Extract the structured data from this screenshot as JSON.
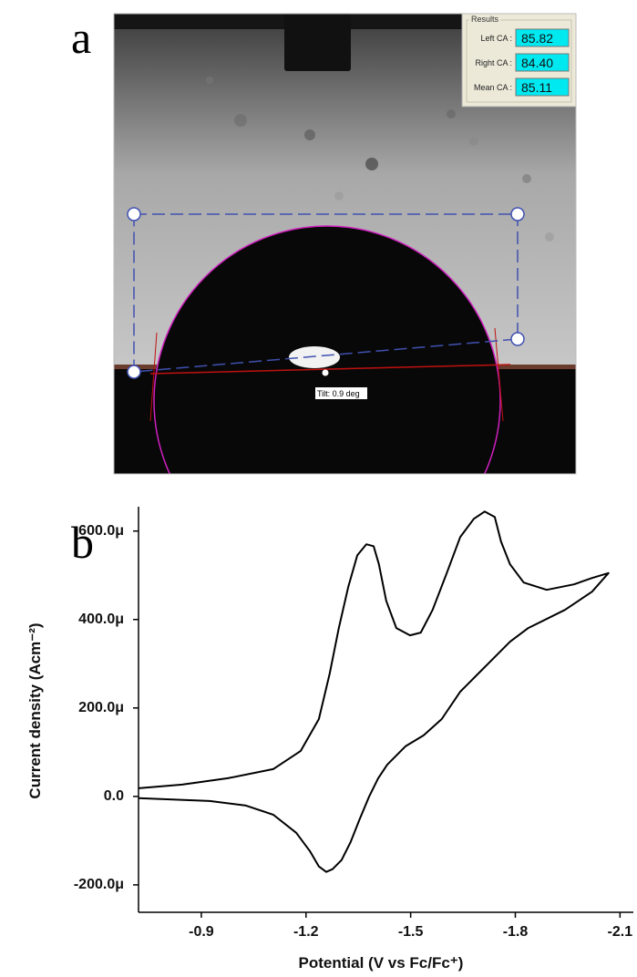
{
  "panel_a": {
    "label": "a",
    "results": {
      "title": "Results",
      "rows": [
        {
          "label": "Left CA :",
          "value": "85.82"
        },
        {
          "label": "Right CA :",
          "value": "84.40"
        },
        {
          "label": "Mean CA :",
          "value": "85.11"
        }
      ]
    },
    "tilt": "Tilt: 0.9 deg"
  },
  "chart_data": {
    "type": "line",
    "panel_label": "b",
    "xlabel": "Potential (V vs Fc/Fc⁺)",
    "ylabel": "Current density (Acm⁻²)",
    "xlim": [
      -0.72,
      -2.12
    ],
    "xticks": [
      -0.9,
      -1.2,
      -1.5,
      -1.8,
      -2.1
    ],
    "ylim": [
      -0.000262,
      0.000655
    ],
    "yticks": [
      {
        "value": -0.0002,
        "label": "-200.0μ"
      },
      {
        "value": 0,
        "label": "0.0"
      },
      {
        "value": 0.0002,
        "label": "200.0μ"
      },
      {
        "value": 0.0004,
        "label": "400.0μ"
      },
      {
        "value": 0.0006,
        "label": "600.0μ"
      }
    ],
    "color": "#000000",
    "x": [
      -0.72,
      -0.845,
      -0.976,
      -1.106,
      -1.185,
      -1.237,
      -1.268,
      -1.294,
      -1.321,
      -1.347,
      -1.373,
      -1.394,
      -1.409,
      -1.43,
      -1.459,
      -1.498,
      -1.529,
      -1.563,
      -1.603,
      -1.642,
      -1.681,
      -1.712,
      -1.741,
      -1.759,
      -1.785,
      -1.824,
      -1.89,
      -1.968,
      -2.02,
      -2.067,
      -2.02,
      -1.942,
      -1.837,
      -1.785,
      -1.733,
      -1.694,
      -1.642,
      -1.589,
      -1.537,
      -1.485,
      -1.433,
      -1.407,
      -1.381,
      -1.354,
      -1.328,
      -1.302,
      -1.276,
      -1.258,
      -1.237,
      -1.211,
      -1.172,
      -1.106,
      -1.028,
      -0.924,
      -0.793,
      -0.72
    ],
    "y": [
      1.85e-05,
      2.67e-05,
      4.12e-05,
      6.17e-05,
      0.0001029,
      0.0001749,
      0.0002778,
      0.0003807,
      0.0004733,
      0.0005453,
      0.00057,
      0.0005658,
      0.0005247,
      0.0004424,
      0.0003807,
      0.0003642,
      0.0003704,
      0.0004218,
      0.0005041,
      0.0005864,
      0.0006276,
      0.000644,
      0.0006317,
      0.0005761,
      0.0005247,
      0.0004835,
      0.0004671,
      0.0004794,
      0.0004938,
      0.000505,
      0.000463,
      0.0004218,
      0.0003807,
      0.0003498,
      0.0003086,
      0.0002778,
      0.0002366,
      0.0001749,
      0.0001379,
      0.0001132,
      7.2e-05,
      4.12e-05,
      0,
      -5.14e-05,
      -0.0001029,
      -0.000144,
      -0.0001646,
      -0.0001708,
      -0.0001584,
      -0.0001235,
      -8.23e-05,
      -4.12e-05,
      -2.06e-05,
      -1.03e-05,
      -6.2e-06,
      -4.1e-06
    ]
  }
}
